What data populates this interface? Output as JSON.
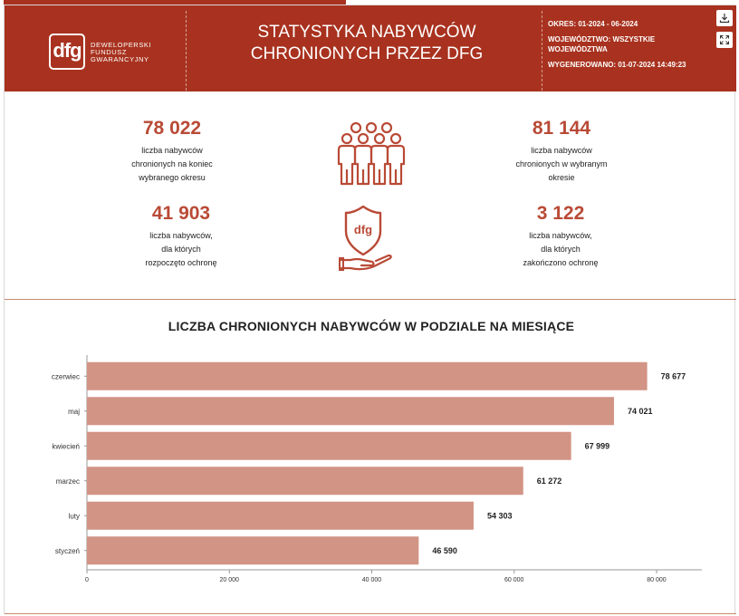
{
  "header": {
    "logo_mark": "dfg",
    "logo_lines": [
      "DEWELOPERSKI",
      "FUNDUSZ",
      "GWARANCYJNY"
    ],
    "title_line1": "STATYSTYKA NABYWCÓW",
    "title_line2": "CHRONIONYCH PRZEZ DFG",
    "period": "OKRES: 01-2024 - 06-2024",
    "voivodeship": "WOJEWÓDZTWO: WSZYSTKIE WOJEWÓDZTWA",
    "generated": "WYGENEROWANO: 01-07-2024 14:49:23",
    "colors": {
      "brand": "#a8321f",
      "accent": "#b94a36",
      "bar": "#d29485"
    }
  },
  "stats": {
    "end_period": {
      "value": "78 022",
      "label_lines": [
        "liczba nabywców",
        "chronionych na koniec",
        "wybranego okresu"
      ]
    },
    "selected_period": {
      "value": "81 144",
      "label_lines": [
        "liczba nabywców",
        "chronionych w wybranym",
        "okresie"
      ]
    },
    "started": {
      "value": "41 903",
      "label_lines": [
        "liczba nabywców,",
        "dla których",
        "rozpoczęto ochronę"
      ]
    },
    "ended": {
      "value": "3 122",
      "label_lines": [
        "liczba nabywców,",
        "dla których",
        "zakończono ochronę"
      ]
    }
  },
  "icons": {
    "download": "download-icon",
    "expand": "expand-icon",
    "people": "people-icon",
    "shield": "shield-hand-icon",
    "shield_text": "dfg"
  },
  "chart_data": {
    "type": "bar",
    "orientation": "horizontal",
    "title": "LICZBA CHRONIONYCH NABYWCÓW W PODZIALE NA MIESIĄCE",
    "categories": [
      "czerwiec",
      "maj",
      "kwiecień",
      "marzec",
      "luty",
      "styczeń"
    ],
    "values": [
      78677,
      74021,
      67999,
      61272,
      54303,
      46590
    ],
    "value_labels": [
      "78 677",
      "74 021",
      "67 999",
      "61 272",
      "54 303",
      "46 590"
    ],
    "xlim": [
      0,
      85000
    ],
    "xticks": [
      0,
      20000,
      40000,
      60000,
      80000
    ],
    "xtick_labels": [
      "0",
      "20 000",
      "40 000",
      "60 000",
      "80 000"
    ],
    "xlabel": "",
    "ylabel": "",
    "grid": false,
    "legend": "none"
  }
}
